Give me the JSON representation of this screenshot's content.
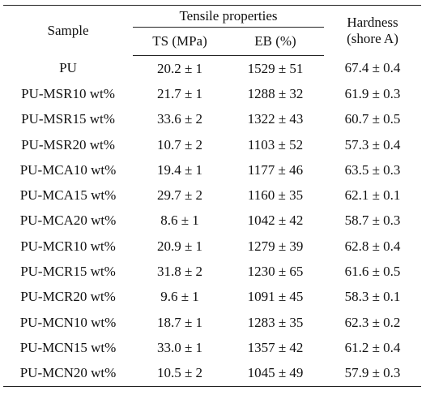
{
  "table": {
    "headers": {
      "sample": "Sample",
      "tensile_group": "Tensile properties",
      "ts": "TS (MPa)",
      "eb": "EB (%)",
      "hardness_line1": "Hardness",
      "hardness_line2": "(shore A)"
    },
    "rows": [
      {
        "sample": "PU",
        "ts": "20.2 ± 1",
        "eb": "1529 ± 51",
        "hardness": "67.4 ± 0.4"
      },
      {
        "sample": "PU-MSR10 wt%",
        "ts": "21.7 ± 1",
        "eb": "1288 ± 32",
        "hardness": "61.9 ± 0.3"
      },
      {
        "sample": "PU-MSR15 wt%",
        "ts": "33.6 ± 2",
        "eb": "1322 ± 43",
        "hardness": "60.7 ± 0.5"
      },
      {
        "sample": "PU-MSR20 wt%",
        "ts": "10.7 ± 2",
        "eb": "1103 ± 52",
        "hardness": "57.3 ± 0.4"
      },
      {
        "sample": "PU-MCA10 wt%",
        "ts": "19.4 ± 1",
        "eb": "1177 ± 46",
        "hardness": "63.5 ± 0.3"
      },
      {
        "sample": "PU-MCA15 wt%",
        "ts": "29.7 ± 2",
        "eb": "1160 ± 35",
        "hardness": "62.1 ± 0.1"
      },
      {
        "sample": "PU-MCA20 wt%",
        "ts": "8.6 ± 1",
        "eb": "1042 ± 42",
        "hardness": "58.7 ± 0.3"
      },
      {
        "sample": "PU-MCR10 wt%",
        "ts": "20.9 ± 1",
        "eb": "1279 ± 39",
        "hardness": "62.8 ± 0.4"
      },
      {
        "sample": "PU-MCR15 wt%",
        "ts": "31.8 ± 2",
        "eb": "1230 ± 65",
        "hardness": "61.6 ± 0.5"
      },
      {
        "sample": "PU-MCR20 wt%",
        "ts": "9.6 ± 1",
        "eb": "1091 ± 45",
        "hardness": "58.3 ± 0.1"
      },
      {
        "sample": "PU-MCN10 wt%",
        "ts": "18.7 ± 1",
        "eb": "1283 ± 35",
        "hardness": "62.3 ± 0.2"
      },
      {
        "sample": "PU-MCN15 wt%",
        "ts": "33.0 ± 1",
        "eb": "1357 ± 42",
        "hardness": "61.2 ± 0.4"
      },
      {
        "sample": "PU-MCN20 wt%",
        "ts": "10.5 ± 2",
        "eb": "1045 ± 49",
        "hardness": "57.9 ± 0.3"
      }
    ]
  }
}
